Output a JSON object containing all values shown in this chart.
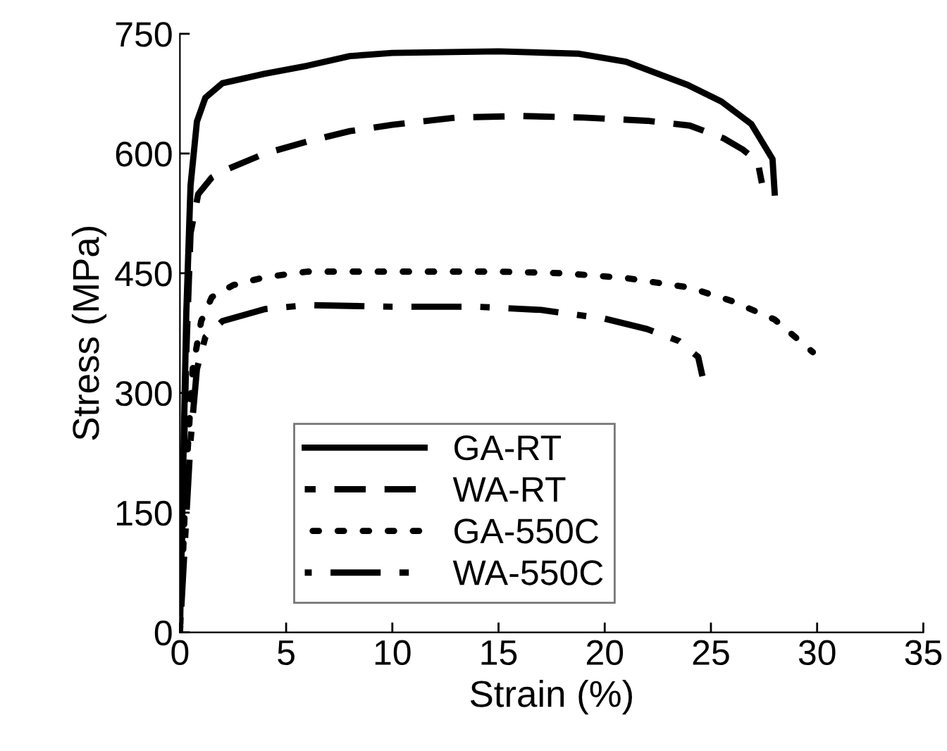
{
  "chart_data": {
    "type": "line",
    "xlabel": "Strain (%)",
    "ylabel": "Stress (MPa)",
    "xlim": [
      0,
      35
    ],
    "xticks": [
      0,
      5,
      10,
      15,
      20,
      25,
      30,
      35
    ],
    "ylim": [
      0,
      750
    ],
    "yticks": [
      0,
      150,
      300,
      450,
      600,
      750
    ],
    "grid": false,
    "legend": "bottom left",
    "marker": "none",
    "series": [
      {
        "name": "GA-RT",
        "color": "#000000",
        "line_style": "solid",
        "x": [
          0,
          0.3,
          0.5,
          0.8,
          1.2,
          2,
          4,
          6,
          8,
          10,
          15,
          18.8,
          21,
          23.9,
          25.5,
          26.9,
          27.9,
          28.0
        ],
        "values": [
          0,
          400,
          560,
          640,
          670,
          688,
          700,
          710,
          722,
          726,
          728,
          725,
          715,
          686,
          665,
          637,
          593,
          551
        ]
      },
      {
        "name": "WA-RT",
        "color": "#000000",
        "line_style": "dashed",
        "x": [
          0,
          0.3,
          0.5,
          0.86,
          1.5,
          2.2,
          4,
          6,
          8,
          10,
          13,
          16,
          19,
          22,
          24,
          25.6,
          26.5,
          27.2,
          27.4
        ],
        "values": [
          0,
          350,
          500,
          549,
          570,
          580,
          600,
          615,
          628,
          636,
          645,
          647,
          645,
          641,
          635,
          619,
          605,
          590,
          563
        ]
      },
      {
        "name": "GA-550C",
        "color": "#000000",
        "line_style": "dotted",
        "x": [
          0,
          0.3,
          0.6,
          1,
          1.5,
          2.5,
          4,
          6,
          10,
          15,
          18,
          21,
          24,
          26,
          28,
          29.8
        ],
        "values": [
          0,
          200,
          330,
          390,
          420,
          435,
          445,
          452,
          452,
          452,
          450,
          444,
          432,
          415,
          392,
          351
        ]
      },
      {
        "name": "WA-550C",
        "color": "#000000",
        "line_style": "dashdot",
        "x": [
          0,
          0.5,
          0.8,
          1.2,
          2,
          4,
          6,
          10,
          14,
          17,
          20,
          22,
          23.5,
          24.4,
          24.6
        ],
        "values": [
          0,
          240,
          330,
          370,
          390,
          405,
          410,
          408,
          408,
          404,
          393,
          380,
          365,
          345,
          321
        ]
      }
    ]
  }
}
